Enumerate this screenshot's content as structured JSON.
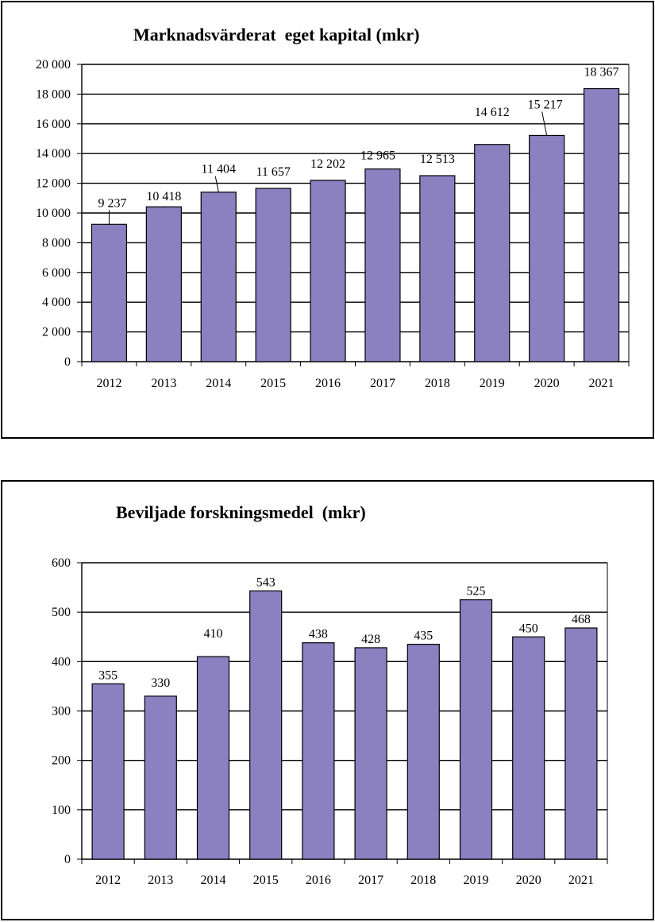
{
  "chart_data": [
    {
      "type": "bar",
      "title": "Marknadsvärderat  eget kapital (mkr)",
      "categories": [
        "2012",
        "2013",
        "2014",
        "2015",
        "2016",
        "2017",
        "2018",
        "2019",
        "2020",
        "2021"
      ],
      "values": [
        9237,
        10418,
        11404,
        11657,
        12202,
        12965,
        12513,
        14612,
        15217,
        18367
      ],
      "value_labels": [
        "9 237",
        "10 418",
        "11 404",
        "11 657",
        "12 202",
        "12 965",
        "12 513",
        "14 612",
        "15 217",
        "18 367"
      ],
      "ylim": [
        0,
        20000
      ],
      "yticks": [
        0,
        2000,
        4000,
        6000,
        8000,
        10000,
        12000,
        14000,
        16000,
        18000,
        20000
      ],
      "ytick_labels": [
        "0",
        "2 000",
        "4 000",
        "6 000",
        "8 000",
        "10 000",
        "12 000",
        "14 000",
        "16 000",
        "18 000",
        "20 000"
      ],
      "bar_color": "#8b80c0",
      "grid": true,
      "xlabel": "",
      "ylabel": ""
    },
    {
      "type": "bar",
      "title": "Beviljade forskningsmedel  (mkr)",
      "categories": [
        "2012",
        "2013",
        "2014",
        "2015",
        "2016",
        "2017",
        "2018",
        "2019",
        "2020",
        "2021"
      ],
      "values": [
        355,
        330,
        410,
        543,
        438,
        428,
        435,
        525,
        450,
        468
      ],
      "value_labels": [
        "355",
        "330",
        "410",
        "543",
        "438",
        "428",
        "435",
        "525",
        "450",
        "468"
      ],
      "ylim": [
        0,
        600
      ],
      "yticks": [
        0,
        100,
        200,
        300,
        400,
        500,
        600
      ],
      "ytick_labels": [
        "0",
        "100",
        "200",
        "300",
        "400",
        "500",
        "600"
      ],
      "bar_color": "#8b80c0",
      "grid": true,
      "xlabel": "",
      "ylabel": ""
    }
  ]
}
